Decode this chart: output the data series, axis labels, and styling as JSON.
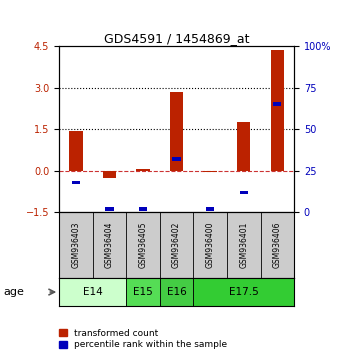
{
  "title": "GDS4591 / 1454869_at",
  "samples": [
    "GSM936403",
    "GSM936404",
    "GSM936405",
    "GSM936402",
    "GSM936400",
    "GSM936401",
    "GSM936406"
  ],
  "red_values": [
    1.45,
    -0.25,
    0.08,
    2.85,
    -0.05,
    1.75,
    4.35
  ],
  "blue_values_pct": [
    18,
    2,
    2,
    32,
    2,
    12,
    65
  ],
  "ylim_left": [
    -1.5,
    4.5
  ],
  "ylim_right": [
    0,
    100
  ],
  "yticks_left": [
    -1.5,
    0,
    1.5,
    3,
    4.5
  ],
  "yticks_right": [
    0,
    25,
    50,
    75,
    100
  ],
  "hlines": [
    1.5,
    3.0
  ],
  "red_color": "#bb2200",
  "blue_color": "#0000bb",
  "zero_line_color": "#cc3333",
  "bg_color": "#ffffff",
  "age_groups": [
    {
      "label": "E14",
      "start": 0,
      "end": 2,
      "color": "#ccffcc"
    },
    {
      "label": "E15",
      "start": 2,
      "end": 3,
      "color": "#55dd55"
    },
    {
      "label": "E16",
      "start": 3,
      "end": 4,
      "color": "#44cc44"
    },
    {
      "label": "E17.5",
      "start": 4,
      "end": 7,
      "color": "#33cc33"
    }
  ],
  "bar_width": 0.4,
  "blue_bar_width": 0.25,
  "blue_bar_height": 0.13,
  "legend_red": "transformed count",
  "legend_blue": "percentile rank within the sample",
  "label_bg": "#cccccc"
}
